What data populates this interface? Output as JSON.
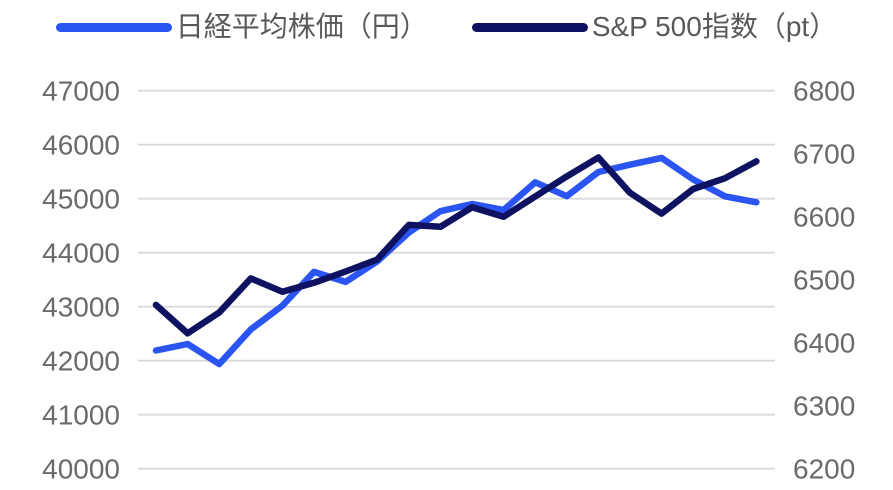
{
  "legend": {
    "series1_label": "日経平均株価（円）",
    "series2_label": "S&P 500指数（pt）"
  },
  "colors": {
    "nikkei_line": "#2b55f2",
    "sp500_line": "#0f1260",
    "gridline": "#d9d9d9",
    "axis_text": "#6a6a6a",
    "legend_text": "#595959",
    "background": "#ffffff"
  },
  "chart_data": {
    "type": "line",
    "title": "",
    "xlabel": "",
    "ylabel_left": "",
    "ylabel_right": "",
    "x": [
      1,
      2,
      3,
      4,
      5,
      6,
      7,
      8,
      9,
      10,
      11,
      12,
      13,
      14,
      15,
      16,
      17,
      18,
      19,
      20
    ],
    "series": [
      {
        "name": "日経平均株価（円）",
        "axis": "left",
        "color": "#2b55f2",
        "values": [
          42189,
          42310,
          41939,
          42580,
          43019,
          43644,
          43459,
          43838,
          44372,
          44768,
          44902,
          44790,
          45303,
          45046,
          45494,
          45630,
          45755,
          45355,
          45044,
          44933
        ]
      },
      {
        "name": "S&P 500指数（pt）",
        "axis": "right",
        "color": "#0f1260",
        "values": [
          6460,
          6415,
          6448,
          6502,
          6481,
          6495,
          6513,
          6532,
          6587,
          6584,
          6615,
          6600,
          6632,
          6664,
          6694,
          6638,
          6605,
          6644,
          6661,
          6688
        ]
      }
    ],
    "left_axis": {
      "ticks": [
        "47000",
        "46000",
        "45000",
        "44000",
        "43000",
        "42000",
        "41000",
        "40000"
      ],
      "range": [
        40000,
        47000
      ]
    },
    "right_axis": {
      "ticks": [
        "6800",
        "6700",
        "6600",
        "6500",
        "6400",
        "6300",
        "6200"
      ],
      "range": [
        6200,
        6800
      ]
    },
    "grid": "horizontal",
    "legend_position": "top"
  }
}
